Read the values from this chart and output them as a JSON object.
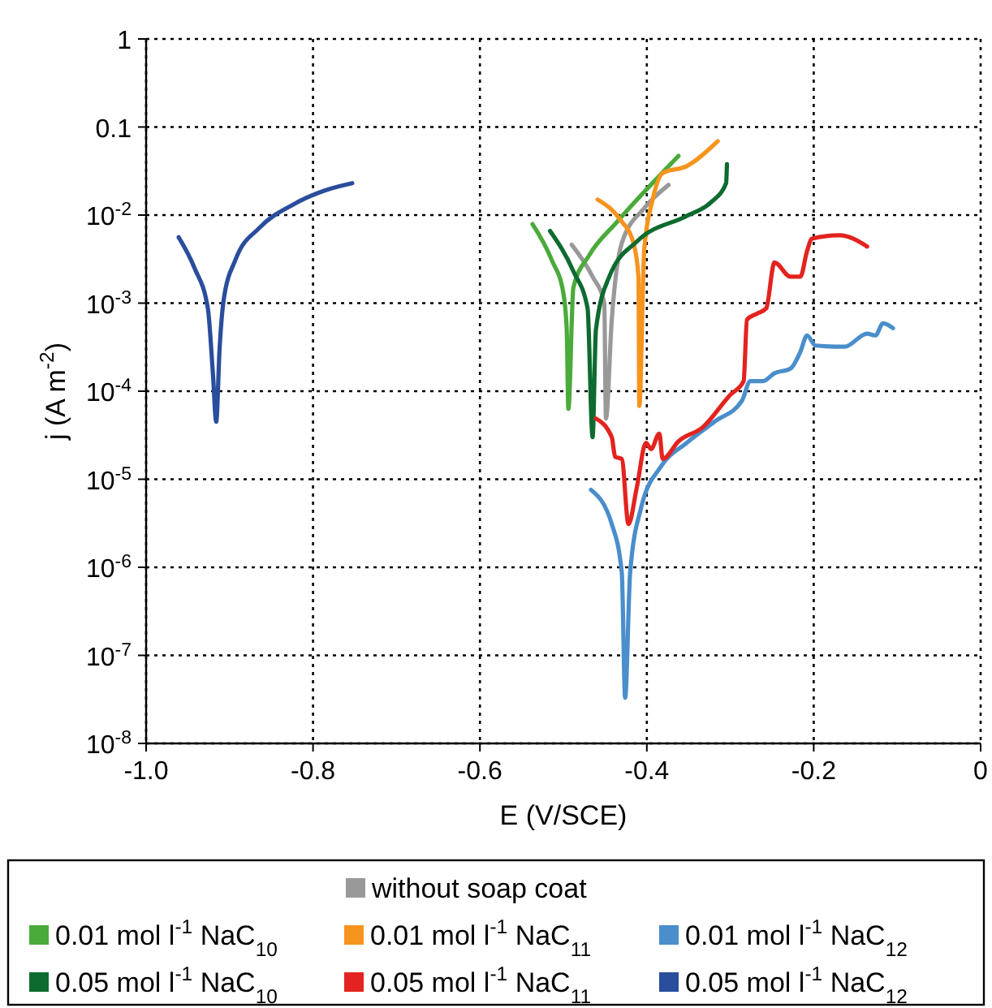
{
  "chart_data": {
    "type": "line",
    "xlabel": "E (V/SCE)",
    "ylabel": "j (A m$^{-2}$)",
    "log": "y",
    "grid": true,
    "legend": "bottom",
    "line_style": "solid",
    "marker": "none",
    "xlim": [
      -1,
      0
    ],
    "xticks": [
      {
        "value": -1,
        "label": "-1.0"
      },
      -0.8,
      -0.6,
      -0.4,
      -0.2,
      0
    ],
    "ylim": [
      1e-08,
      1
    ],
    "yticks": [
      {
        "value": 1e-08,
        "label": "10$^{-8}$"
      },
      {
        "value": 1e-07,
        "label": "10$^{-7}$"
      },
      {
        "value": 1e-06,
        "label": "10$^{-6}$"
      },
      {
        "value": 1e-05,
        "label": "10$^{-5}$"
      },
      {
        "value": 0.0001,
        "label": "10$^{-4}$"
      },
      {
        "value": 0.001,
        "label": "10$^{-3}$"
      },
      {
        "value": 0.01,
        "label": "10$^{-2}$"
      },
      0.1,
      1
    ],
    "series": [
      {
        "name": "without soap coat",
        "color": "#999999",
        "x": [
          -0.49,
          -0.465,
          -0.451,
          -0.449,
          -0.442,
          -0.43,
          -0.403,
          -0.374
        ],
        "values": [
          0.0046,
          0.002,
          0.001,
          4.9e-05,
          0.00065,
          0.0048,
          0.012,
          0.022
        ]
      },
      {
        "name": "0.01 mol l$^{-1}$ NaC$_{10}$",
        "color": "#4aab3a",
        "x": [
          -0.537,
          -0.514,
          -0.5,
          -0.496,
          -0.494,
          -0.488,
          -0.469,
          -0.436,
          -0.362
        ],
        "values": [
          0.0079,
          0.0031,
          0.0013,
          0.0005,
          6.3e-05,
          0.0015,
          0.0035,
          0.0083,
          0.047
        ]
      },
      {
        "name": "0.01 mol l$^{-1}$ NaC$_{11}$",
        "color": "#f7941d",
        "x": [
          -0.459,
          -0.432,
          -0.416,
          -0.41,
          -0.409,
          -0.403,
          -0.393,
          -0.381,
          -0.352,
          -0.315
        ],
        "values": [
          0.015,
          0.0089,
          0.0048,
          0.002,
          6.8e-05,
          0.0042,
          0.015,
          0.03,
          0.036,
          0.069
        ]
      },
      {
        "name": "0.01 mol l$^{-1}$ NaC$_{12}$",
        "color": "#4a8ecb",
        "x": [
          -0.467,
          -0.442,
          -0.43,
          -0.426,
          -0.42,
          -0.407,
          -0.383,
          -0.352,
          -0.319,
          -0.286,
          -0.276,
          -0.261,
          -0.247,
          -0.228,
          -0.216,
          -0.208,
          -0.198,
          -0.163,
          -0.136,
          -0.126,
          -0.117,
          -0.105
        ],
        "values": [
          7.6e-06,
          3.1e-06,
          8.7e-07,
          3.3e-08,
          8.7e-07,
          4.7e-06,
          1.4e-05,
          2.6e-05,
          4.5e-05,
          7.8e-05,
          0.00013,
          0.00013,
          0.00016,
          0.00018,
          0.00028,
          0.00043,
          0.00033,
          0.00032,
          0.00045,
          0.00043,
          0.00059,
          0.00052
        ]
      },
      {
        "name": "0.05 mol l$^{-1}$ NaC$_{10}$",
        "color": "#0e6b30",
        "x": [
          -0.516,
          -0.488,
          -0.471,
          -0.465,
          -0.461,
          -0.445,
          -0.411,
          -0.352,
          -0.323,
          -0.305,
          -0.304
        ],
        "values": [
          0.0066,
          0.0023,
          0.00087,
          3e-05,
          0.0005,
          0.002,
          0.0051,
          0.0098,
          0.014,
          0.023,
          0.038
        ]
      },
      {
        "name": "0.05 mol l$^{-1}$ NaC$_{11}$",
        "color": "#e3231f",
        "x": [
          -0.461,
          -0.442,
          -0.438,
          -0.43,
          -0.422,
          -0.412,
          -0.401,
          -0.395,
          -0.385,
          -0.381,
          -0.362,
          -0.333,
          -0.3,
          -0.284,
          -0.28,
          -0.268,
          -0.257,
          -0.247,
          -0.228,
          -0.216,
          -0.208,
          -0.202,
          -0.169,
          -0.136
        ],
        "values": [
          4.9e-05,
          3e-05,
          1.8e-05,
          1.7e-05,
          3.1e-06,
          8.1e-06,
          2.6e-05,
          2.2e-05,
          3.3e-05,
          1.7e-05,
          2.7e-05,
          3.9e-05,
          9.1e-05,
          0.00013,
          0.00065,
          0.00076,
          0.00087,
          0.0029,
          0.002,
          0.002,
          0.0039,
          0.0054,
          0.0059,
          0.0044
        ]
      },
      {
        "name": "0.05 mol l$^{-1}$ NaC$_{12}$",
        "color": "#2a4d9c",
        "x": [
          -0.961,
          -0.942,
          -0.926,
          -0.92,
          -0.916,
          -0.912,
          -0.907,
          -0.893,
          -0.864,
          -0.825,
          -0.786,
          -0.753
        ],
        "values": [
          0.0056,
          0.0025,
          0.00087,
          0.00016,
          4.5e-05,
          0.0003,
          0.0011,
          0.0031,
          0.0072,
          0.013,
          0.019,
          0.023
        ]
      }
    ]
  }
}
